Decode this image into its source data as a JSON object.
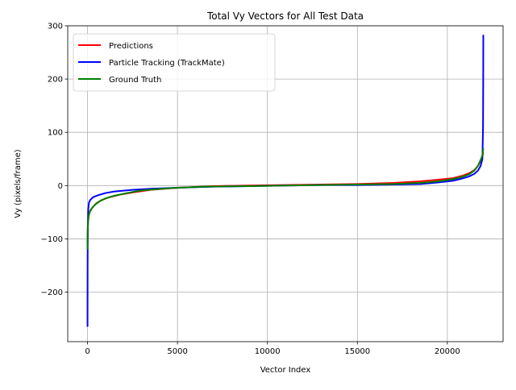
{
  "chart_data": {
    "type": "line",
    "title": "Total Vy Vectors for All Test Data",
    "xlabel": "Vector Index",
    "ylabel": "Vy (pixels/frame)",
    "xlim": [
      -1100,
      23100
    ],
    "ylim": [
      -293,
      300
    ],
    "xticks": [
      0,
      5000,
      10000,
      15000,
      20000
    ],
    "xtick_labels": [
      "0",
      "5000",
      "10000",
      "15000",
      "20000"
    ],
    "yticks": [
      -200,
      -100,
      0,
      100,
      200,
      300
    ],
    "ytick_labels": [
      "−200",
      "−100",
      "0",
      "100",
      "200",
      "300"
    ],
    "grid": true,
    "legend_position": "top-left",
    "series": [
      {
        "name": "Predictions",
        "color": "#ff0000",
        "x": [
          0,
          15,
          40,
          80,
          150,
          300,
          500,
          800,
          1200,
          1800,
          2500,
          3500,
          5000,
          7000,
          9000,
          11000,
          13000,
          15000,
          17000,
          18500,
          19500,
          20300,
          20800,
          21200,
          21500,
          21700,
          21850,
          21950,
          22000
        ],
        "y": [
          -110,
          -80,
          -65,
          -55,
          -47,
          -40,
          -33,
          -27,
          -22,
          -17,
          -13,
          -8,
          -4,
          -1,
          0,
          1,
          2,
          3,
          5,
          8,
          11,
          14,
          18,
          23,
          29,
          37,
          46,
          55,
          62
        ]
      },
      {
        "name": "Particle Tracking (TrackMate)",
        "color": "#0000ff",
        "x": [
          0,
          5,
          15,
          40,
          80,
          150,
          300,
          600,
          1000,
          1500,
          2500,
          3500,
          5000,
          7000,
          9000,
          11000,
          13000,
          15000,
          17000,
          18500,
          19500,
          20300,
          20800,
          21200,
          21500,
          21700,
          21850,
          21950,
          21985,
          21995,
          22000
        ],
        "y": [
          -265,
          -150,
          -75,
          -45,
          -32,
          -27,
          -22,
          -18,
          -14,
          -11,
          -8,
          -6,
          -4,
          -2,
          -1,
          0,
          1,
          1,
          2,
          3,
          6,
          9,
          13,
          17,
          22,
          28,
          37,
          50,
          110,
          200,
          283
        ]
      },
      {
        "name": "Ground Truth",
        "color": "#008000",
        "x": [
          0,
          10,
          30,
          60,
          120,
          250,
          450,
          700,
          1000,
          1500,
          2200,
          3000,
          4500,
          6500,
          9000,
          11000,
          13000,
          15000,
          17000,
          18500,
          19500,
          20300,
          20800,
          21200,
          21500,
          21700,
          21850,
          21950,
          22000
        ],
        "y": [
          -120,
          -90,
          -68,
          -58,
          -50,
          -42,
          -35,
          -29,
          -24,
          -19,
          -14,
          -9,
          -5,
          -2,
          -1,
          0,
          1,
          2,
          3,
          5,
          8,
          12,
          16,
          21,
          28,
          37,
          48,
          57,
          70
        ]
      }
    ]
  }
}
